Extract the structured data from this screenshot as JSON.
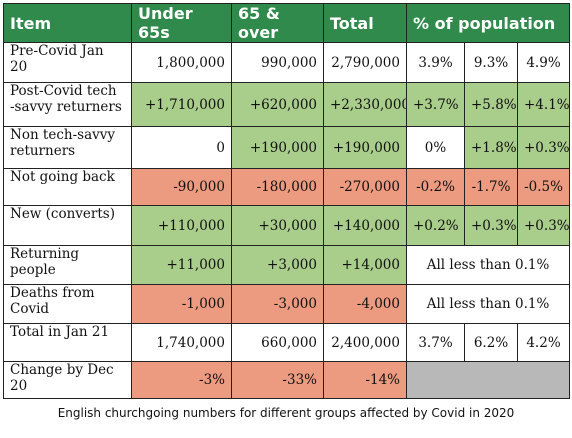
{
  "headers": {
    "item": "Item",
    "under65": "Under 65s",
    "over65": "65 & over",
    "total": "Total",
    "pct": "% of population"
  },
  "rows": [
    {
      "label": "Pre-Covid Jan 20",
      "under": "1,800,000",
      "over": "990,000",
      "total": "2,790,000",
      "p1": "3.9%",
      "p2": "9.3%",
      "p3": "4.9%"
    },
    {
      "label": "Post-Covid tech\n-savvy returners",
      "under": "+1,710,000",
      "over": "+620,000",
      "total": "+2,330,000",
      "p1": "+3.7%",
      "p2": "+5.8%",
      "p3": "+4.1%"
    },
    {
      "label": "Non tech-savvy\nreturners",
      "under": "0",
      "over": "+190,000",
      "total": "+190,000",
      "p1": "0%",
      "p2": "+1.8%",
      "p3": "+0.3%"
    },
    {
      "label": "Not going back",
      "under": "-90,000",
      "over": "-180,000",
      "total": "-270,000",
      "p1": "-0.2%",
      "p2": "-1.7%",
      "p3": "-0.5%"
    },
    {
      "label": "New (converts)",
      "under": "+110,000",
      "over": "+30,000",
      "total": "+140,000",
      "p1": "+0.2%",
      "p2": "+0.3%",
      "p3": "+0.3%"
    },
    {
      "label": "Returning people",
      "under": "+11,000",
      "over": "+3,000",
      "total": "+14,000",
      "note": "All less than 0.1%"
    },
    {
      "label": "Deaths from Covid",
      "under": "-1,000",
      "over": "-3,000",
      "total": "-4,000",
      "note": "All less than 0.1%"
    },
    {
      "label": "Total in Jan 21",
      "under": "1,740,000",
      "over": "660,000",
      "total": "2,400,000",
      "p1": "3.7%",
      "p2": "6.2%",
      "p3": "4.2%"
    },
    {
      "label": "Change by Dec 20",
      "under": "-3%",
      "over": "-33%",
      "total": "-14%"
    }
  ],
  "colors": {
    "header": "#2f8a4c",
    "increase": "#a9cd8b",
    "decrease": "#ec9a80",
    "blank": "#b8b8b8"
  },
  "caption": "English churchgoing numbers for different groups affected by Covid in 2020"
}
